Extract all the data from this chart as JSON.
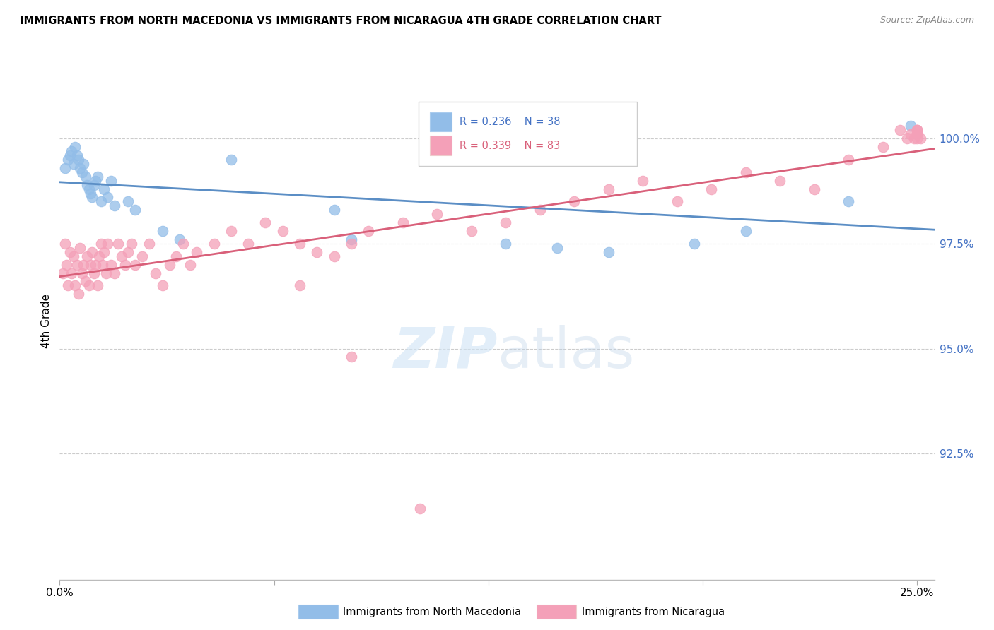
{
  "title": "IMMIGRANTS FROM NORTH MACEDONIA VS IMMIGRANTS FROM NICARAGUA 4TH GRADE CORRELATION CHART",
  "source": "Source: ZipAtlas.com",
  "ylabel": "4th Grade",
  "xlim": [
    0.0,
    25.5
  ],
  "ylim": [
    89.5,
    101.8
  ],
  "yticks": [
    100.0,
    97.5,
    95.0,
    92.5
  ],
  "ytick_labels": [
    "100.0%",
    "97.5%",
    "95.0%",
    "92.5%"
  ],
  "xtick_left": "0.0%",
  "xtick_right": "25.0%",
  "legend_R_blue": "R = 0.236",
  "legend_N_blue": "N = 38",
  "legend_R_pink": "R = 0.339",
  "legend_N_pink": "N = 83",
  "legend_blue_label": "Immigrants from North Macedonia",
  "legend_pink_label": "Immigrants from Nicaragua",
  "blue_color": "#92BDE8",
  "pink_color": "#F4A0B8",
  "blue_line_color": "#5B8EC5",
  "pink_line_color": "#D9607A",
  "grid_color": "#CCCCCC",
  "blue_scatter_x": [
    0.15,
    0.25,
    0.3,
    0.35,
    0.4,
    0.45,
    0.5,
    0.55,
    0.6,
    0.65,
    0.7,
    0.75,
    0.8,
    0.85,
    0.9,
    0.95,
    1.0,
    1.05,
    1.1,
    1.2,
    1.3,
    1.4,
    1.5,
    1.6,
    2.0,
    2.2,
    3.0,
    3.5,
    5.0,
    8.0,
    8.5,
    13.0,
    14.5,
    16.0,
    18.5,
    20.0,
    23.0,
    24.8
  ],
  "blue_scatter_y": [
    99.3,
    99.5,
    99.6,
    99.7,
    99.4,
    99.8,
    99.6,
    99.5,
    99.3,
    99.2,
    99.4,
    99.1,
    98.9,
    98.8,
    98.7,
    98.6,
    98.9,
    99.0,
    99.1,
    98.5,
    98.8,
    98.6,
    99.0,
    98.4,
    98.5,
    98.3,
    97.8,
    97.6,
    99.5,
    98.3,
    97.6,
    97.5,
    97.4,
    97.3,
    97.5,
    97.8,
    98.5,
    100.3
  ],
  "pink_scatter_x": [
    0.1,
    0.15,
    0.2,
    0.25,
    0.3,
    0.35,
    0.4,
    0.45,
    0.5,
    0.55,
    0.6,
    0.65,
    0.7,
    0.75,
    0.8,
    0.85,
    0.9,
    0.95,
    1.0,
    1.05,
    1.1,
    1.15,
    1.2,
    1.25,
    1.3,
    1.35,
    1.4,
    1.5,
    1.6,
    1.7,
    1.8,
    1.9,
    2.0,
    2.1,
    2.2,
    2.4,
    2.6,
    2.8,
    3.0,
    3.2,
    3.4,
    3.6,
    3.8,
    4.0,
    4.5,
    5.0,
    5.5,
    6.0,
    6.5,
    7.0,
    7.5,
    8.0,
    8.5,
    9.0,
    10.0,
    11.0,
    12.0,
    13.0,
    14.0,
    15.0,
    16.0,
    17.0,
    18.0,
    19.0,
    20.0,
    21.0,
    22.0,
    23.0,
    24.0,
    24.5,
    24.7,
    24.8,
    24.9,
    25.0,
    25.0,
    25.0,
    25.0,
    25.1,
    25.0,
    25.0,
    7.0,
    8.5,
    10.5
  ],
  "pink_scatter_y": [
    96.8,
    97.5,
    97.0,
    96.5,
    97.3,
    96.8,
    97.2,
    96.5,
    97.0,
    96.3,
    97.4,
    96.8,
    97.0,
    96.6,
    97.2,
    96.5,
    97.0,
    97.3,
    96.8,
    97.0,
    96.5,
    97.2,
    97.5,
    97.0,
    97.3,
    96.8,
    97.5,
    97.0,
    96.8,
    97.5,
    97.2,
    97.0,
    97.3,
    97.5,
    97.0,
    97.2,
    97.5,
    96.8,
    96.5,
    97.0,
    97.2,
    97.5,
    97.0,
    97.3,
    97.5,
    97.8,
    97.5,
    98.0,
    97.8,
    97.5,
    97.3,
    97.2,
    97.5,
    97.8,
    98.0,
    98.2,
    97.8,
    98.0,
    98.3,
    98.5,
    98.8,
    99.0,
    98.5,
    98.8,
    99.2,
    99.0,
    98.8,
    99.5,
    99.8,
    100.2,
    100.0,
    100.1,
    100.0,
    100.2,
    100.1,
    100.0,
    100.2,
    100.0,
    100.1,
    100.2,
    96.5,
    94.8,
    91.2
  ]
}
